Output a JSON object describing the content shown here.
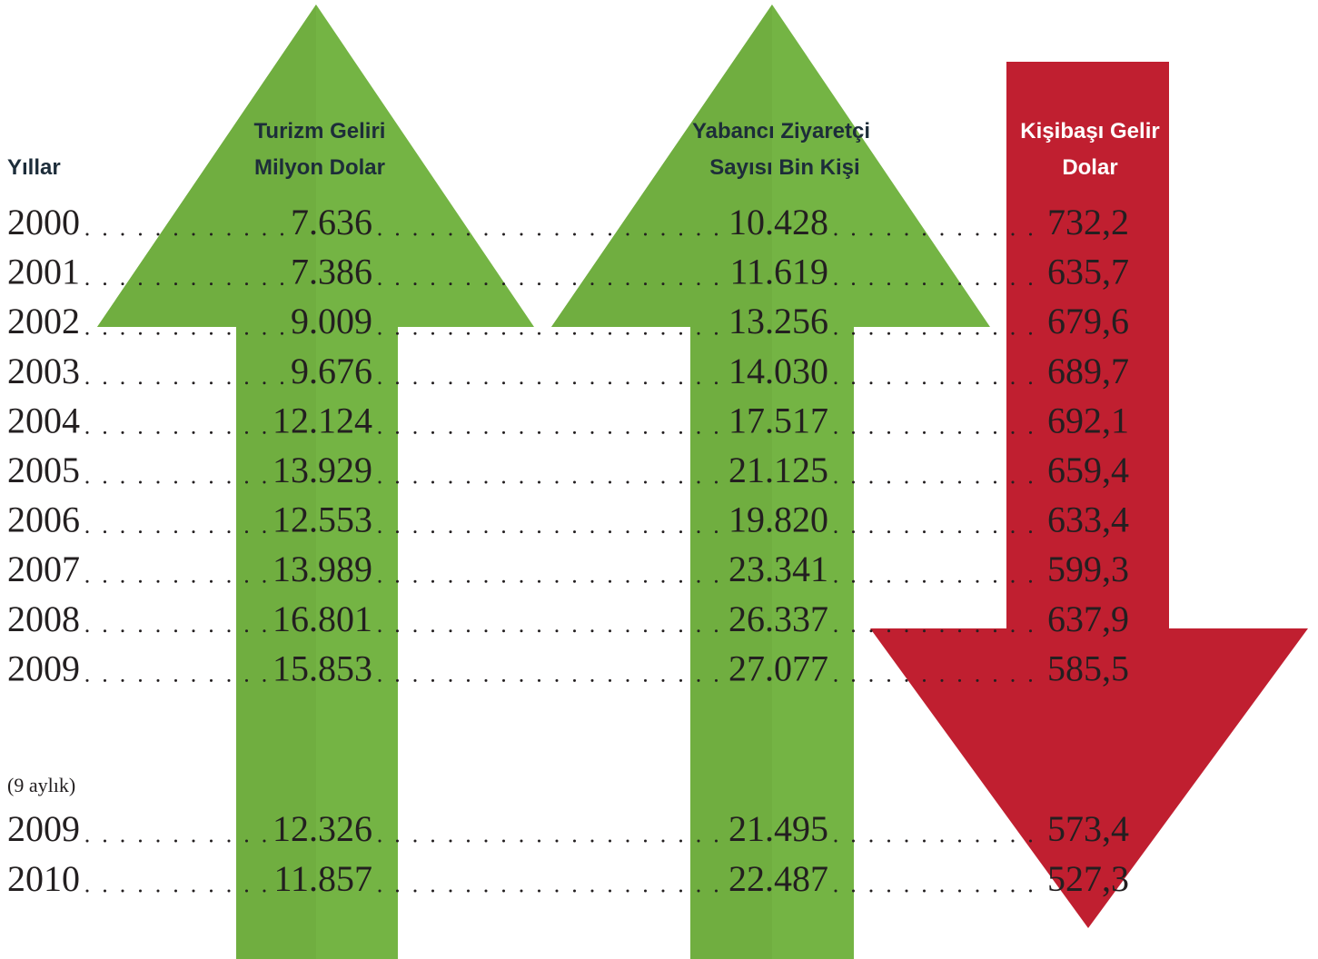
{
  "header": {
    "years": "Yıllar",
    "columns": [
      [
        "Turizm  Geliri",
        "Milyon Dolar"
      ],
      [
        "Yabancı Ziyaretçi",
        "Sayısı Bin Kişi"
      ],
      [
        "Kişibaşı Gelir",
        "Dolar"
      ]
    ]
  },
  "rows": [
    [
      "2000",
      "7.636",
      "10.428",
      "732,2"
    ],
    [
      "2001",
      "7.386",
      "11.619",
      "635,7"
    ],
    [
      "2002",
      "9.009",
      "13.256",
      "679,6"
    ],
    [
      "2003",
      "9.676",
      "14.030",
      "689,7"
    ],
    [
      "2004",
      "12.124",
      "17.517",
      "692,1"
    ],
    [
      "2005",
      "13.929",
      "21.125",
      "659,4"
    ],
    [
      "2006",
      "12.553",
      "19.820",
      "633,4"
    ],
    [
      "2007",
      "13.989",
      "23.341",
      "599,3"
    ],
    [
      "2008",
      "16.801",
      "26.337",
      "637,9"
    ],
    [
      "2009",
      "15.853",
      "27.077",
      "585,5"
    ]
  ],
  "partial": {
    "label": "(9 aylık)",
    "rows": [
      [
        "2009",
        "12.326",
        "21.495",
        "573,4"
      ],
      [
        "2010",
        "11.857",
        "22.487",
        "527,3"
      ]
    ]
  }
}
